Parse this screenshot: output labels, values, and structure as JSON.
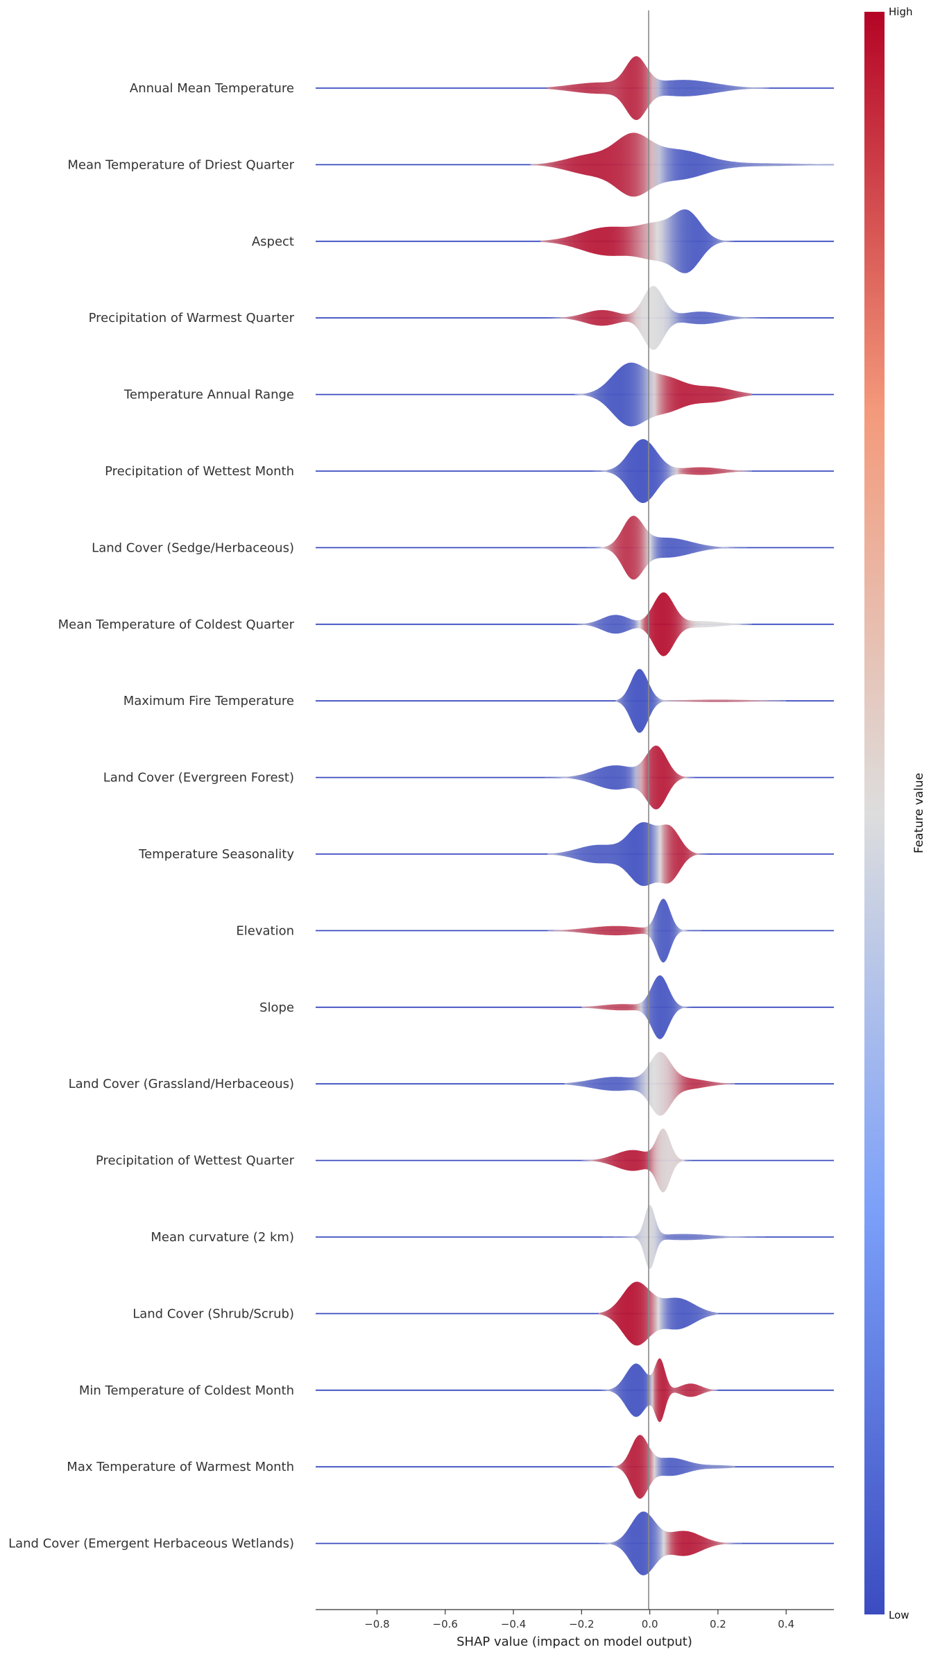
{
  "chart_data": {
    "type": "violin",
    "xlabel": "SHAP value (impact on model output)",
    "xlim": [
      -0.98,
      0.54
    ],
    "xticks": [
      -0.8,
      -0.6,
      -0.4,
      -0.2,
      0.0,
      0.2,
      0.4
    ],
    "xtick_labels": [
      "−0.8",
      "−0.6",
      "−0.4",
      "−0.2",
      "0.0",
      "0.2",
      "0.4"
    ],
    "colorbar": {
      "title": "Feature value",
      "high_label": "High",
      "low_label": "Low",
      "high_color": "#b40426",
      "mid_color": "#dddddd",
      "low_color": "#3b4cc0"
    },
    "features": [
      {
        "name": "Annual Mean Temperature",
        "min": -0.3,
        "max": 0.35,
        "peaks": [
          [
            -0.04,
            1.0,
            0.03,
            "high"
          ],
          [
            -0.15,
            0.2,
            0.08,
            "high"
          ],
          [
            0.1,
            0.3,
            0.09,
            "low"
          ]
        ]
      },
      {
        "name": "Mean Temperature of Driest Quarter",
        "min": -0.35,
        "max": 0.54,
        "peaks": [
          [
            -0.05,
            0.9,
            0.05,
            "high"
          ],
          [
            -0.17,
            0.35,
            0.07,
            "high"
          ],
          [
            0.08,
            0.5,
            0.08,
            "low"
          ],
          [
            0.3,
            0.05,
            0.15,
            "low"
          ]
        ]
      },
      {
        "name": "Aspect",
        "min": -0.32,
        "max": 0.25,
        "peaks": [
          [
            -0.12,
            0.5,
            0.08,
            "high"
          ],
          [
            0.02,
            0.5,
            0.05,
            "mid"
          ],
          [
            0.11,
            1.0,
            0.04,
            "low"
          ]
        ]
      },
      {
        "name": "Precipitation of Warmest Quarter",
        "min": -0.3,
        "max": 0.35,
        "peaks": [
          [
            0.01,
            1.0,
            0.03,
            "mid"
          ],
          [
            -0.14,
            0.25,
            0.05,
            "high"
          ],
          [
            0.15,
            0.2,
            0.06,
            "low"
          ]
        ]
      },
      {
        "name": "Temperature Annual Range",
        "min": -0.22,
        "max": 0.3,
        "peaks": [
          [
            -0.06,
            1.0,
            0.05,
            "low"
          ],
          [
            0.05,
            0.5,
            0.05,
            "high"
          ],
          [
            0.18,
            0.25,
            0.06,
            "high"
          ]
        ]
      },
      {
        "name": "Precipitation of Wettest Month",
        "min": -0.22,
        "max": 0.3,
        "peaks": [
          [
            -0.02,
            1.0,
            0.04,
            "low"
          ],
          [
            0.15,
            0.12,
            0.06,
            "high"
          ]
        ]
      },
      {
        "name": "Land Cover (Sedge/Herbaceous)",
        "min": -0.2,
        "max": 0.3,
        "peaks": [
          [
            -0.05,
            1.0,
            0.03,
            "high"
          ],
          [
            0.05,
            0.35,
            0.07,
            "low"
          ]
        ]
      },
      {
        "name": "Mean Temperature of Coldest Quarter",
        "min": -0.3,
        "max": 0.3,
        "peaks": [
          [
            0.04,
            1.0,
            0.03,
            "high"
          ],
          [
            -0.1,
            0.3,
            0.04,
            "low"
          ],
          [
            0.15,
            0.1,
            0.06,
            "mid"
          ]
        ]
      },
      {
        "name": "Maximum Fire Temperature",
        "min": -0.1,
        "max": 0.4,
        "peaks": [
          [
            -0.03,
            1.0,
            0.025,
            "low"
          ],
          [
            0.2,
            0.04,
            0.1,
            "high"
          ]
        ]
      },
      {
        "name": "Land Cover (Evergreen Forest)",
        "min": -0.35,
        "max": 0.3,
        "peaks": [
          [
            0.02,
            1.0,
            0.03,
            "high"
          ],
          [
            -0.1,
            0.4,
            0.06,
            "low"
          ]
        ]
      },
      {
        "name": "Temperature Seasonality",
        "min": -0.3,
        "max": 0.25,
        "peaks": [
          [
            -0.02,
            1.0,
            0.04,
            "low"
          ],
          [
            0.06,
            0.8,
            0.03,
            "high"
          ],
          [
            -0.15,
            0.3,
            0.06,
            "low"
          ]
        ]
      },
      {
        "name": "Elevation",
        "min": -0.3,
        "max": 0.15,
        "peaks": [
          [
            0.04,
            1.0,
            0.02,
            "low"
          ],
          [
            -0.1,
            0.15,
            0.08,
            "high"
          ]
        ]
      },
      {
        "name": "Slope",
        "min": -0.2,
        "max": 0.15,
        "peaks": [
          [
            0.03,
            1.0,
            0.025,
            "low"
          ],
          [
            -0.08,
            0.1,
            0.06,
            "high"
          ]
        ]
      },
      {
        "name": "Land Cover (Grassland/Herbaceous)",
        "min": -0.25,
        "max": 0.25,
        "peaks": [
          [
            0.03,
            1.0,
            0.03,
            "mid"
          ],
          [
            -0.1,
            0.25,
            0.07,
            "low"
          ],
          [
            0.1,
            0.2,
            0.06,
            "high"
          ]
        ]
      },
      {
        "name": "Precipitation of Wettest Quarter",
        "min": -0.2,
        "max": 0.15,
        "peaks": [
          [
            0.04,
            1.0,
            0.02,
            "mid"
          ],
          [
            -0.05,
            0.35,
            0.05,
            "high"
          ]
        ]
      },
      {
        "name": "Mean curvature (2 km)",
        "min": -0.25,
        "max": 0.5,
        "peaks": [
          [
            0.0,
            1.0,
            0.015,
            "mid"
          ],
          [
            0.1,
            0.1,
            0.08,
            "low"
          ]
        ]
      },
      {
        "name": "Land Cover (Shrub/Scrub)",
        "min": -0.15,
        "max": 0.2,
        "peaks": [
          [
            -0.04,
            1.0,
            0.04,
            "high"
          ],
          [
            0.08,
            0.5,
            0.05,
            "low"
          ]
        ]
      },
      {
        "name": "Min Temperature of Coldest Month",
        "min": -0.15,
        "max": 0.2,
        "peaks": [
          [
            -0.04,
            0.8,
            0.03,
            "low"
          ],
          [
            0.03,
            0.9,
            0.015,
            "high"
          ],
          [
            0.12,
            0.2,
            0.03,
            "high"
          ]
        ]
      },
      {
        "name": "Max Temperature of Warmest Month",
        "min": -0.2,
        "max": 0.25,
        "peaks": [
          [
            -0.03,
            1.0,
            0.025,
            "high"
          ],
          [
            0.06,
            0.3,
            0.05,
            "low"
          ],
          [
            0.2,
            0.05,
            0.05,
            "low"
          ]
        ]
      },
      {
        "name": "Land Cover (Emergent Herbaceous Wetlands)",
        "min": -0.15,
        "max": 0.3,
        "peaks": [
          [
            -0.02,
            1.0,
            0.035,
            "low"
          ],
          [
            0.1,
            0.4,
            0.05,
            "high"
          ]
        ]
      }
    ]
  }
}
